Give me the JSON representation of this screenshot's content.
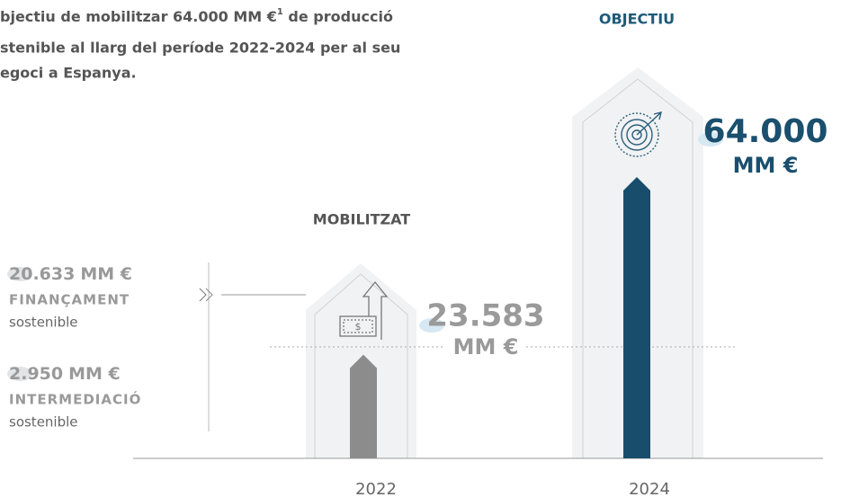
{
  "title": {
    "line1": "bjectiu de mobilitzar 64.000 MM €",
    "sup": "1",
    "line1_end": " de producció",
    "line2": "stenible al llarg del període 2022-2024 per al seu",
    "line3": "egoci a Espanya."
  },
  "chart_data": {
    "type": "bar",
    "categories": [
      "2022",
      "2024"
    ],
    "labels": [
      "MOBILITZAT",
      "OBJECTIU"
    ],
    "values": [
      23583,
      64000
    ],
    "value_labels": [
      "23.583",
      "64.000"
    ],
    "unit": "MM €",
    "colors": [
      "#8c8c8c",
      "#184e6b"
    ]
  },
  "breakdown": [
    {
      "amount": "20.633",
      "unit": "MM €",
      "label": "FINANÇAMENT",
      "note": "sostenible"
    },
    {
      "amount": "2.950",
      "unit": "MM €",
      "label": "INTERMEDIACIÓ",
      "note": "sostenible"
    }
  ]
}
